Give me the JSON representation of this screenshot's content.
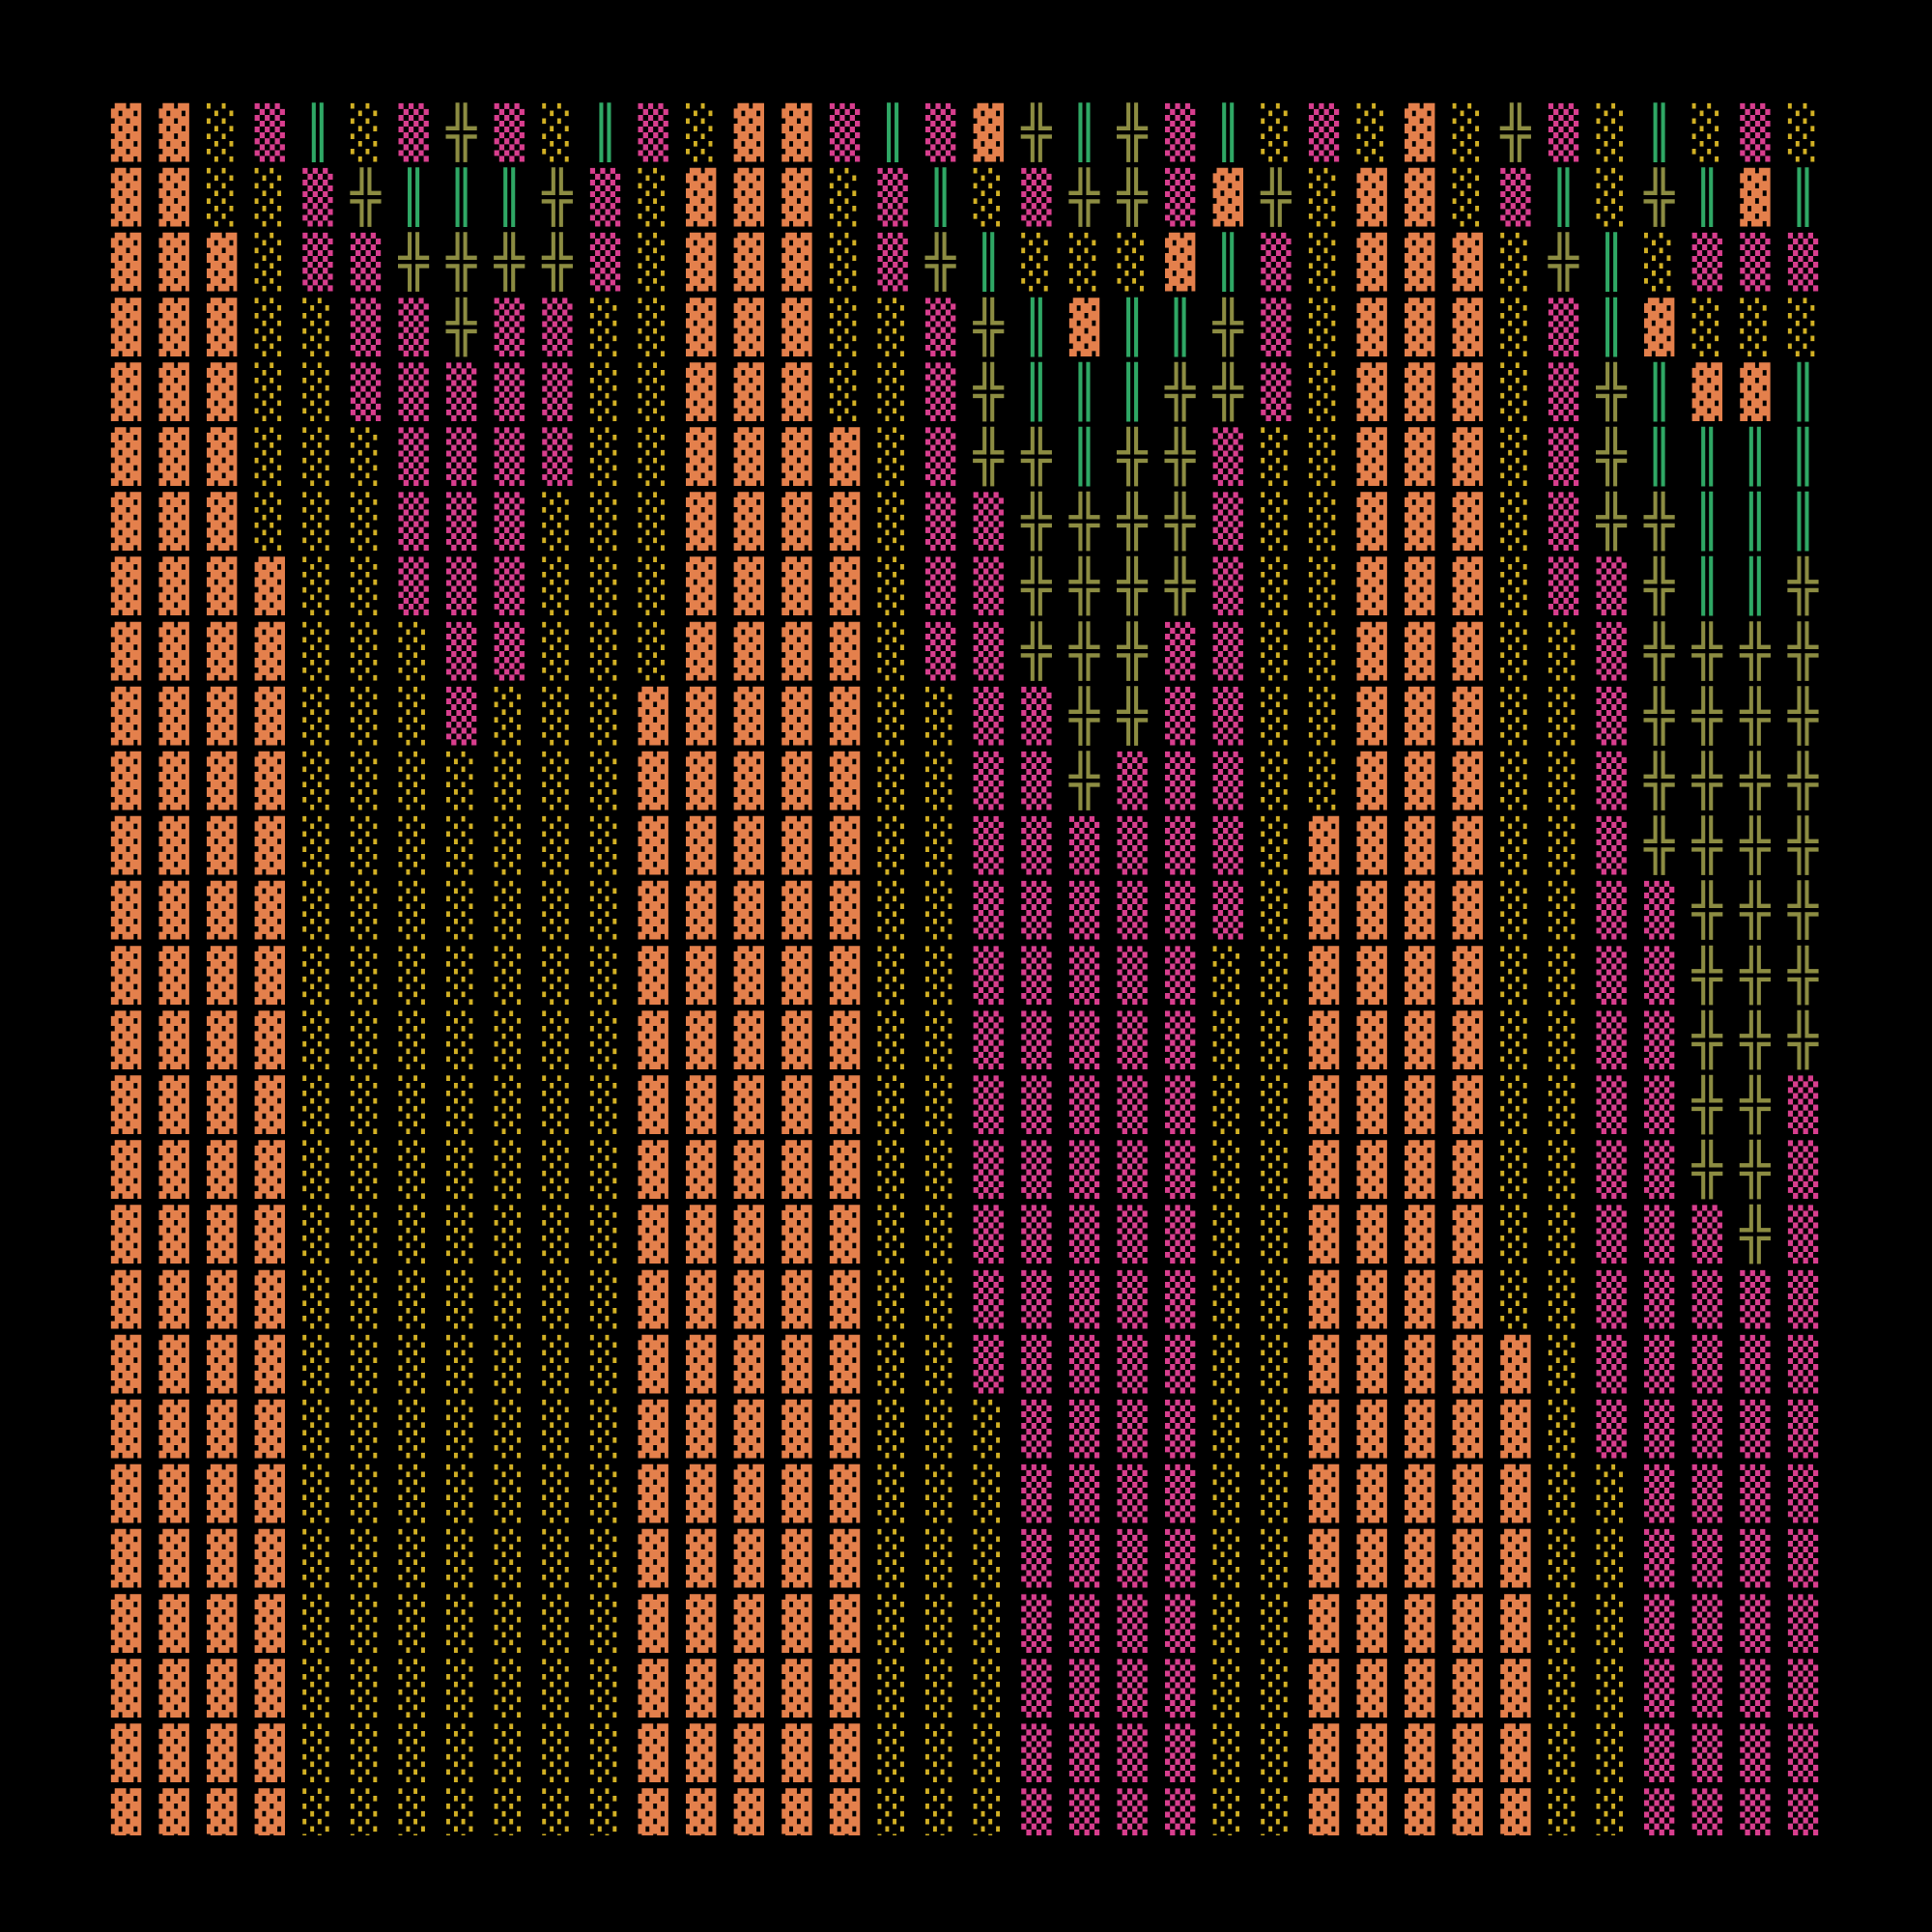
{
  "screen": {
    "palette": {
      "▓": "#e4804c",
      "▒": "#d83e8e",
      "░": "#d2b024",
      "║": "#2fa865",
      "╬": "#8c8c42"
    },
    "rows": [
      [
        "▓",
        "▓",
        "░",
        "▒",
        "║",
        "░",
        "▒",
        "╬",
        "▒",
        "░",
        "║",
        "▒",
        "░",
        "▓",
        "▓",
        "▒",
        "║",
        "▒",
        "▓",
        "╬",
        "║",
        "╬",
        "▒",
        "║",
        "░",
        "▒",
        "░",
        "▓",
        "░",
        "╬",
        "▒",
        "░",
        "║",
        "░",
        "▒",
        "░"
      ],
      [
        "▓",
        "▓",
        "░",
        "░",
        "▒",
        "╬",
        "║",
        "║",
        "║",
        "╬",
        "▒",
        "░",
        "▓",
        "▓",
        "▓",
        "░",
        "▒",
        "║",
        "░",
        "▒",
        "╬",
        "╬",
        "▒",
        "▓",
        "╬",
        "░",
        "▓",
        "▓",
        "░",
        "▒",
        "║",
        "░",
        "╬",
        "║",
        "▓",
        "║"
      ],
      [
        "▓",
        "▓",
        "▓",
        "░",
        "▒",
        "▒",
        "╬",
        "╬",
        "╬",
        "╬",
        "▒",
        "░",
        "▓",
        "▓",
        "▓",
        "░",
        "▒",
        "╬",
        "║",
        "░",
        "░",
        "░",
        "▓",
        "║",
        "▒",
        "░",
        "▓",
        "▓",
        "▓",
        "░",
        "╬",
        "║",
        "░",
        "▒",
        "▒",
        "▒"
      ],
      [
        "▓",
        "▓",
        "▓",
        "░",
        "░",
        "▒",
        "▒",
        "╬",
        "▒",
        "▒",
        "░",
        "░",
        "▓",
        "▓",
        "▓",
        "░",
        "░",
        "▒",
        "╬",
        "║",
        "▓",
        "║",
        "║",
        "╬",
        "▒",
        "░",
        "▓",
        "▓",
        "▓",
        "░",
        "▒",
        "║",
        "▓",
        "░",
        "░",
        "░"
      ],
      [
        "▓",
        "▓",
        "▓",
        "░",
        "░",
        "▒",
        "▒",
        "▒",
        "▒",
        "▒",
        "░",
        "░",
        "▓",
        "▓",
        "▓",
        "░",
        "░",
        "▒",
        "╬",
        "║",
        "║",
        "║",
        "╬",
        "╬",
        "▒",
        "░",
        "▓",
        "▓",
        "▓",
        "░",
        "▒",
        "╬",
        "║",
        "▓",
        "▓",
        "║"
      ],
      [
        "▓",
        "▓",
        "▓",
        "░",
        "░",
        "░",
        "▒",
        "▒",
        "▒",
        "▒",
        "░",
        "░",
        "▓",
        "▓",
        "▓",
        "▓",
        "░",
        "▒",
        "╬",
        "╬",
        "║",
        "╬",
        "╬",
        "▒",
        "░",
        "░",
        "▓",
        "▓",
        "▓",
        "░",
        "▒",
        "╬",
        "║",
        "║",
        "║",
        "║"
      ],
      [
        "▓",
        "▓",
        "▓",
        "░",
        "░",
        "░",
        "▒",
        "▒",
        "▒",
        "░",
        "░",
        "░",
        "▓",
        "▓",
        "▓",
        "▓",
        "░",
        "▒",
        "▒",
        "╬",
        "╬",
        "╬",
        "╬",
        "▒",
        "░",
        "░",
        "▓",
        "▓",
        "▓",
        "░",
        "▒",
        "╬",
        "╬",
        "║",
        "║",
        "║"
      ],
      [
        "▓",
        "▓",
        "▓",
        "▓",
        "░",
        "░",
        "▒",
        "▒",
        "▒",
        "░",
        "░",
        "░",
        "▓",
        "▓",
        "▓",
        "▓",
        "░",
        "▒",
        "▒",
        "╬",
        "╬",
        "╬",
        "╬",
        "▒",
        "░",
        "░",
        "▓",
        "▓",
        "▓",
        "░",
        "▒",
        "▒",
        "╬",
        "║",
        "║",
        "╬"
      ],
      [
        "▓",
        "▓",
        "▓",
        "▓",
        "░",
        "░",
        "░",
        "▒",
        "▒",
        "░",
        "░",
        "░",
        "▓",
        "▓",
        "▓",
        "▓",
        "░",
        "▒",
        "▒",
        "╬",
        "╬",
        "╬",
        "▒",
        "▒",
        "░",
        "░",
        "▓",
        "▓",
        "▓",
        "░",
        "░",
        "▒",
        "╬",
        "╬",
        "╬",
        "╬"
      ],
      [
        "▓",
        "▓",
        "▓",
        "▓",
        "░",
        "░",
        "░",
        "▒",
        "░",
        "░",
        "░",
        "▓",
        "▓",
        "▓",
        "▓",
        "▓",
        "░",
        "░",
        "▒",
        "▒",
        "╬",
        "╬",
        "▒",
        "▒",
        "░",
        "░",
        "▓",
        "▓",
        "▓",
        "░",
        "░",
        "▒",
        "╬",
        "╬",
        "╬",
        "╬"
      ],
      [
        "▓",
        "▓",
        "▓",
        "▓",
        "░",
        "░",
        "░",
        "░",
        "░",
        "░",
        "░",
        "▓",
        "▓",
        "▓",
        "▓",
        "▓",
        "░",
        "░",
        "▒",
        "▒",
        "╬",
        "▒",
        "▒",
        "▒",
        "░",
        "░",
        "▓",
        "▓",
        "▓",
        "░",
        "░",
        "▒",
        "╬",
        "╬",
        "╬",
        "╬"
      ],
      [
        "▓",
        "▓",
        "▓",
        "▓",
        "░",
        "░",
        "░",
        "░",
        "░",
        "░",
        "░",
        "▓",
        "▓",
        "▓",
        "▓",
        "▓",
        "░",
        "░",
        "▒",
        "▒",
        "▒",
        "▒",
        "▒",
        "▒",
        "░",
        "▓",
        "▓",
        "▓",
        "▓",
        "░",
        "░",
        "▒",
        "╬",
        "╬",
        "╬",
        "╬"
      ],
      [
        "▓",
        "▓",
        "▓",
        "▓",
        "░",
        "░",
        "░",
        "░",
        "░",
        "░",
        "░",
        "▓",
        "▓",
        "▓",
        "▓",
        "▓",
        "░",
        "░",
        "▒",
        "▒",
        "▒",
        "▒",
        "▒",
        "▒",
        "░",
        "▓",
        "▓",
        "▓",
        "▓",
        "░",
        "░",
        "▒",
        "▒",
        "╬",
        "╬",
        "╬"
      ],
      [
        "▓",
        "▓",
        "▓",
        "▓",
        "░",
        "░",
        "░",
        "░",
        "░",
        "░",
        "░",
        "▓",
        "▓",
        "▓",
        "▓",
        "▓",
        "░",
        "░",
        "▒",
        "▒",
        "▒",
        "▒",
        "▒",
        "░",
        "░",
        "▓",
        "▓",
        "▓",
        "▓",
        "░",
        "░",
        "▒",
        "▒",
        "╬",
        "╬",
        "╬"
      ],
      [
        "▓",
        "▓",
        "▓",
        "▓",
        "░",
        "░",
        "░",
        "░",
        "░",
        "░",
        "░",
        "▓",
        "▓",
        "▓",
        "▓",
        "▓",
        "░",
        "░",
        "▒",
        "▒",
        "▒",
        "▒",
        "▒",
        "░",
        "░",
        "▓",
        "▓",
        "▓",
        "▓",
        "░",
        "░",
        "▒",
        "▒",
        "╬",
        "╬",
        "╬"
      ],
      [
        "▓",
        "▓",
        "▓",
        "▓",
        "░",
        "░",
        "░",
        "░",
        "░",
        "░",
        "░",
        "▓",
        "▓",
        "▓",
        "▓",
        "▓",
        "░",
        "░",
        "▒",
        "▒",
        "▒",
        "▒",
        "▒",
        "░",
        "░",
        "▓",
        "▓",
        "▓",
        "▓",
        "░",
        "░",
        "▒",
        "▒",
        "╬",
        "╬",
        "▒"
      ],
      [
        "▓",
        "▓",
        "▓",
        "▓",
        "░",
        "░",
        "░",
        "░",
        "░",
        "░",
        "░",
        "▓",
        "▓",
        "▓",
        "▓",
        "▓",
        "░",
        "░",
        "▒",
        "▒",
        "▒",
        "▒",
        "▒",
        "░",
        "░",
        "▓",
        "▓",
        "▓",
        "▓",
        "░",
        "░",
        "▒",
        "▒",
        "╬",
        "╬",
        "▒"
      ],
      [
        "▓",
        "▓",
        "▓",
        "▓",
        "░",
        "░",
        "░",
        "░",
        "░",
        "░",
        "░",
        "▓",
        "▓",
        "▓",
        "▓",
        "▓",
        "░",
        "░",
        "▒",
        "▒",
        "▒",
        "▒",
        "▒",
        "░",
        "░",
        "▓",
        "▓",
        "▓",
        "▓",
        "░",
        "░",
        "▒",
        "▒",
        "▒",
        "╬",
        "▒"
      ],
      [
        "▓",
        "▓",
        "▓",
        "▓",
        "░",
        "░",
        "░",
        "░",
        "░",
        "░",
        "░",
        "▓",
        "▓",
        "▓",
        "▓",
        "▓",
        "░",
        "░",
        "▒",
        "▒",
        "▒",
        "▒",
        "▒",
        "░",
        "░",
        "▓",
        "▓",
        "▓",
        "▓",
        "░",
        "░",
        "▒",
        "▒",
        "▒",
        "▒",
        "▒"
      ],
      [
        "▓",
        "▓",
        "▓",
        "▓",
        "░",
        "░",
        "░",
        "░",
        "░",
        "░",
        "░",
        "▓",
        "▓",
        "▓",
        "▓",
        "▓",
        "░",
        "░",
        "▒",
        "▒",
        "▒",
        "▒",
        "▒",
        "░",
        "░",
        "▓",
        "▓",
        "▓",
        "▓",
        "▓",
        "░",
        "▒",
        "▒",
        "▒",
        "▒",
        "▒"
      ],
      [
        "▓",
        "▓",
        "▓",
        "▓",
        "░",
        "░",
        "░",
        "░",
        "░",
        "░",
        "░",
        "▓",
        "▓",
        "▓",
        "▓",
        "▓",
        "░",
        "░",
        "░",
        "▒",
        "▒",
        "▒",
        "▒",
        "░",
        "░",
        "▓",
        "▓",
        "▓",
        "▓",
        "▓",
        "░",
        "▒",
        "▒",
        "▒",
        "▒",
        "▒"
      ],
      [
        "▓",
        "▓",
        "▓",
        "▓",
        "░",
        "░",
        "░",
        "░",
        "░",
        "░",
        "░",
        "▓",
        "▓",
        "▓",
        "▓",
        "▓",
        "░",
        "░",
        "░",
        "▒",
        "▒",
        "▒",
        "▒",
        "░",
        "░",
        "▓",
        "▓",
        "▓",
        "▓",
        "▓",
        "░",
        "░",
        "▒",
        "▒",
        "▒",
        "▒"
      ],
      [
        "▓",
        "▓",
        "▓",
        "▓",
        "░",
        "░",
        "░",
        "░",
        "░",
        "░",
        "░",
        "▓",
        "▓",
        "▓",
        "▓",
        "▓",
        "░",
        "░",
        "░",
        "▒",
        "▒",
        "▒",
        "▒",
        "░",
        "░",
        "▓",
        "▓",
        "▓",
        "▓",
        "▓",
        "░",
        "░",
        "▒",
        "▒",
        "▒",
        "▒"
      ],
      [
        "▓",
        "▓",
        "▓",
        "▓",
        "░",
        "░",
        "░",
        "░",
        "░",
        "░",
        "░",
        "▓",
        "▓",
        "▓",
        "▓",
        "▓",
        "░",
        "░",
        "░",
        "▒",
        "▒",
        "▒",
        "▒",
        "░",
        "░",
        "▓",
        "▓",
        "▓",
        "▓",
        "▓",
        "░",
        "░",
        "▒",
        "▒",
        "▒",
        "▒"
      ],
      [
        "▓",
        "▓",
        "▓",
        "▓",
        "░",
        "░",
        "░",
        "░",
        "░",
        "░",
        "░",
        "▓",
        "▓",
        "▓",
        "▓",
        "▓",
        "░",
        "░",
        "░",
        "▒",
        "▒",
        "▒",
        "▒",
        "░",
        "░",
        "▓",
        "▓",
        "▓",
        "▓",
        "▓",
        "░",
        "░",
        "▒",
        "▒",
        "▒",
        "▒"
      ],
      [
        "▓",
        "▓",
        "▓",
        "▓",
        "░",
        "░",
        "░",
        "░",
        "░",
        "░",
        "░",
        "▓",
        "▓",
        "▓",
        "▓",
        "▓",
        "░",
        "░",
        "░",
        "▒",
        "▒",
        "▒",
        "▒",
        "░",
        "░",
        "▓",
        "▓",
        "▓",
        "▓",
        "▓",
        "░",
        "░",
        "▒",
        "▒",
        "▒",
        "▒"
      ],
      [
        "▓",
        "▓",
        "▓",
        "▓",
        "░",
        "░",
        "░",
        "░",
        "░",
        "░",
        "░",
        "▓",
        "▓",
        "▓",
        "▓",
        "▓",
        "░",
        "░",
        "░",
        "▒",
        "▒",
        "▒",
        "▒",
        "░",
        "░",
        "▓",
        "▓",
        "▓",
        "▓",
        "▓",
        "░",
        "░",
        "▒",
        "▒",
        "▒",
        "▒"
      ]
    ]
  }
}
